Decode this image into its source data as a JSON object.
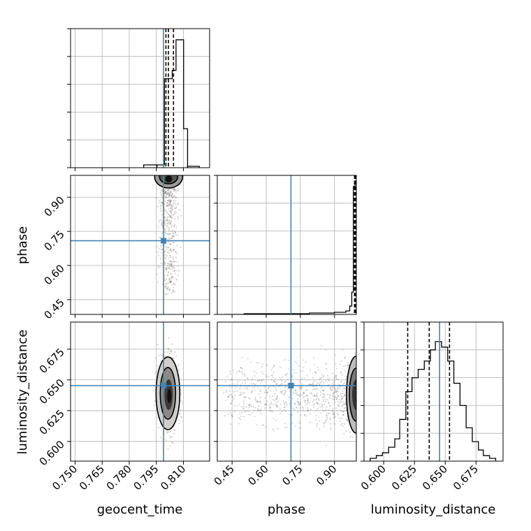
{
  "chart_data": {
    "type": "corner",
    "parameters": [
      "geocent_time",
      "phase",
      "luminosity_distance"
    ],
    "x_axis_labels": [
      "geocent_time",
      "phase",
      "luminosity_distance"
    ],
    "y_axis_labels": [
      "phase",
      "luminosity_distance"
    ],
    "ticks": {
      "geocent_time": [
        0.75,
        0.765,
        0.78,
        0.795,
        0.81
      ],
      "geocent_time_labels": [
        "0.750",
        "0.765",
        "0.780",
        "0.795",
        "0.810"
      ],
      "phase": [
        0.45,
        0.6,
        0.75,
        0.9
      ],
      "phase_labels": [
        "0.45",
        "0.60",
        "0.75",
        "0.90"
      ],
      "luminosity_distance": [
        0.6,
        0.625,
        0.65,
        0.675
      ],
      "luminosity_distance_labels": [
        "0.600",
        "0.625",
        "0.650",
        "0.675"
      ]
    },
    "ranges": {
      "geocent_time": [
        0.7475,
        0.8245
      ],
      "phase": [
        0.385,
        0.996
      ],
      "luminosity_distance": [
        0.584,
        0.697
      ]
    },
    "truths": {
      "geocent_time": 0.799,
      "phase": 0.7088,
      "luminosity_distance": 0.6454
    },
    "truth_color": "#4682b4",
    "hist_color": "#000000",
    "grid": true,
    "marginals": {
      "geocent_time": {
        "edges": [
          0.7953,
          0.7974,
          0.7995,
          0.8016,
          0.8038,
          0.8059,
          0.808,
          0.8101,
          0.8123
        ],
        "counts": [
          0.02,
          0.02,
          0.64,
          0.64,
          0.7,
          0.92,
          0.92,
          0.28
        ],
        "extra_edges": [
          0.788,
          0.7953
        ],
        "extra_counts": [
          0.02
        ],
        "tail_edges": [
          0.8123,
          0.8188
        ],
        "tail_counts": [
          0.01
        ],
        "quantiles": [
          0.8003,
          0.8017,
          0.8045
        ]
      },
      "phase": {
        "edges": [
          0.413,
          0.503,
          0.68,
          0.79,
          0.9,
          0.95,
          0.967,
          0.976,
          0.983,
          0.99,
          0.996
        ],
        "counts": [
          0.0,
          0.005,
          0.005,
          0.01,
          0.015,
          0.025,
          0.06,
          0.16,
          0.92,
          0.96
        ],
        "quantiles": [
          0.988,
          0.991,
          0.994
        ]
      },
      "luminosity_distance": {
        "edges": [
          0.589,
          0.594,
          0.599,
          0.604,
          0.609,
          0.613,
          0.618,
          0.623,
          0.628,
          0.633,
          0.638,
          0.642,
          0.647,
          0.652,
          0.657,
          0.662,
          0.667,
          0.672,
          0.677,
          0.681,
          0.686,
          0.691
        ],
        "counts": [
          0.02,
          0.04,
          0.06,
          0.1,
          0.16,
          0.3,
          0.5,
          0.6,
          0.66,
          0.72,
          0.8,
          0.86,
          0.82,
          0.72,
          0.56,
          0.4,
          0.24,
          0.14,
          0.08,
          0.04,
          0.02
        ],
        "quantiles": [
          0.6195,
          0.637,
          0.6535
        ]
      }
    },
    "joint_center": {
      "geocent_time": 0.8018,
      "phase": 0.975,
      "luminosity_distance": 0.638
    }
  }
}
